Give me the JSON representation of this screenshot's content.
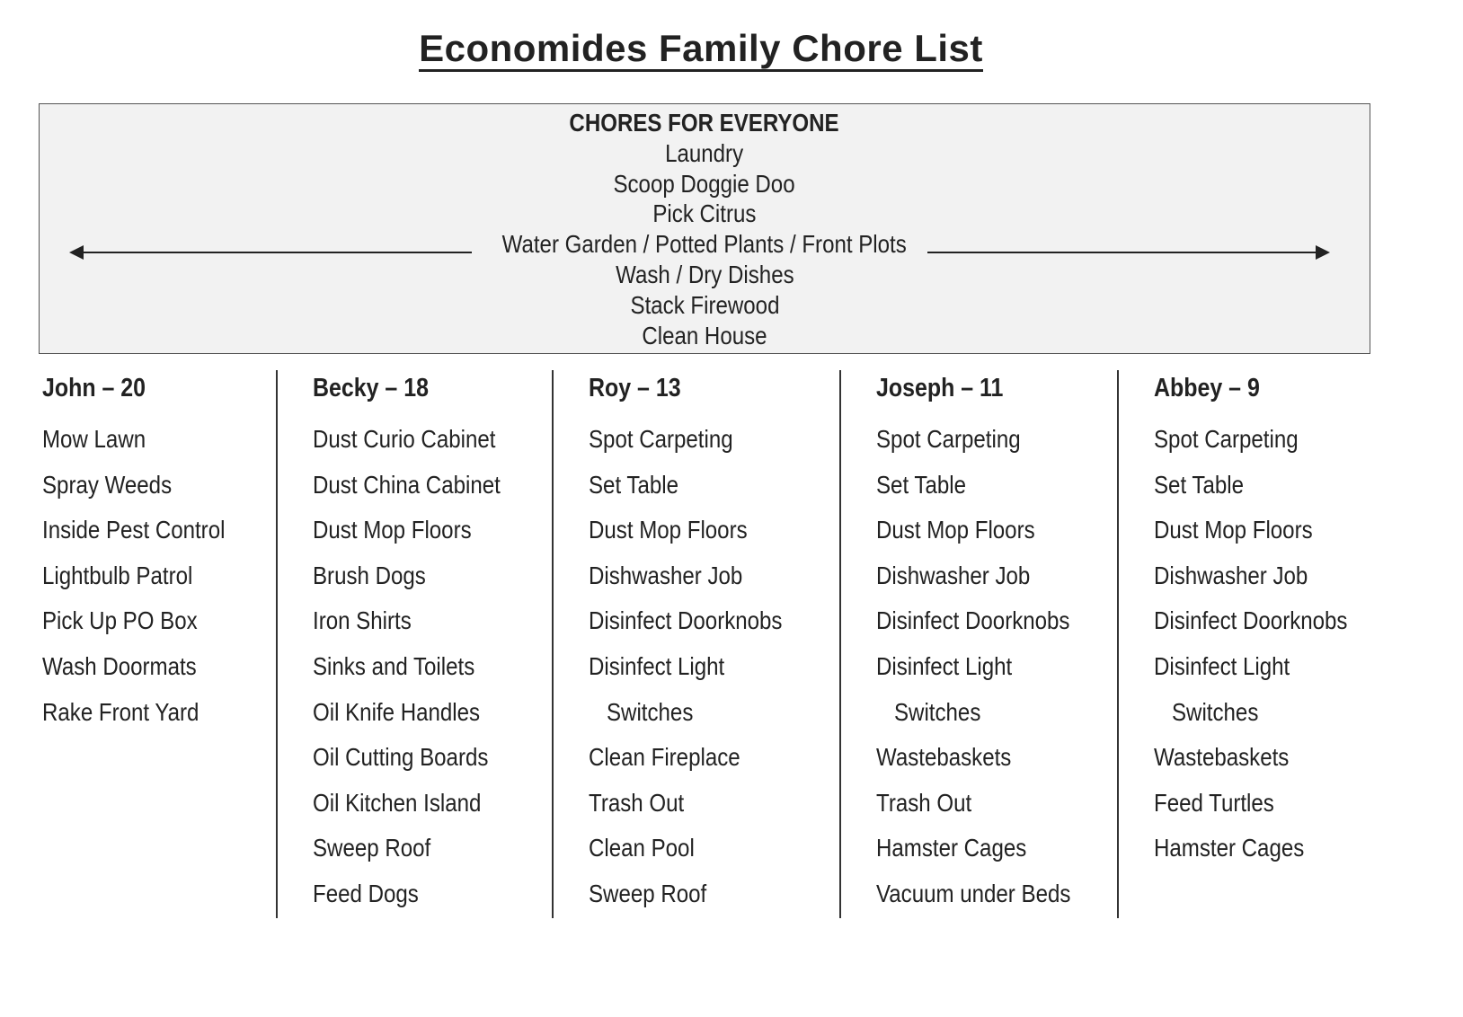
{
  "title": "Economides Family Chore List",
  "everyone": {
    "heading": "CHORES FOR EVERYONE",
    "items": [
      "Laundry",
      "Scoop Doggie Doo",
      "Pick Citrus",
      "Water Garden / Potted Plants / Front Plots",
      "Wash / Dry Dishes",
      "Stack Firewood",
      "Clean House"
    ],
    "arrows": "left-right-arrow-icon"
  },
  "columns": [
    {
      "name": "John – 20",
      "items": [
        {
          "t": "Mow Lawn"
        },
        {
          "t": "Spray Weeds"
        },
        {
          "t": "Inside Pest Control"
        },
        {
          "t": "Lightbulb Patrol"
        },
        {
          "t": "Pick Up PO Box"
        },
        {
          "t": "Wash Doormats"
        },
        {
          "t": "Rake Front Yard"
        }
      ]
    },
    {
      "name": "Becky – 18",
      "items": [
        {
          "t": "Dust Curio Cabinet"
        },
        {
          "t": "Dust China Cabinet"
        },
        {
          "t": "Dust Mop Floors"
        },
        {
          "t": "Brush Dogs"
        },
        {
          "t": "Iron Shirts"
        },
        {
          "t": "Sinks and Toilets"
        },
        {
          "t": "Oil Knife Handles"
        },
        {
          "t": "Oil Cutting Boards"
        },
        {
          "t": "Oil Kitchen Island"
        },
        {
          "t": "Sweep Roof"
        },
        {
          "t": "Feed Dogs"
        }
      ]
    },
    {
      "name": "Roy – 13",
      "items": [
        {
          "t": "Spot Carpeting"
        },
        {
          "t": "Set Table"
        },
        {
          "t": "Dust Mop Floors"
        },
        {
          "t": "Dishwasher Job"
        },
        {
          "t": "Disinfect Doorknobs"
        },
        {
          "t": "Disinfect Light"
        },
        {
          "t": "Switches",
          "indent": true
        },
        {
          "t": "Clean Fireplace"
        },
        {
          "t": "Trash Out"
        },
        {
          "t": "Clean Pool"
        },
        {
          "t": "Sweep Roof"
        }
      ]
    },
    {
      "name": "Joseph – 11",
      "items": [
        {
          "t": "Spot Carpeting"
        },
        {
          "t": "Set Table"
        },
        {
          "t": "Dust Mop Floors"
        },
        {
          "t": "Dishwasher Job"
        },
        {
          "t": "Disinfect Doorknobs"
        },
        {
          "t": "Disinfect Light"
        },
        {
          "t": "Switches",
          "indent": true
        },
        {
          "t": "Wastebaskets"
        },
        {
          "t": "Trash Out"
        },
        {
          "t": "Hamster Cages"
        },
        {
          "t": "Vacuum under Beds"
        }
      ]
    },
    {
      "name": "Abbey – 9",
      "items": [
        {
          "t": "Spot Carpeting"
        },
        {
          "t": "Set Table"
        },
        {
          "t": "Dust Mop Floors"
        },
        {
          "t": "Dishwasher Job"
        },
        {
          "t": "Disinfect Doorknobs"
        },
        {
          "t": "Disinfect Light"
        },
        {
          "t": "Switches",
          "indent": true
        },
        {
          "t": "Wastebaskets"
        },
        {
          "t": "Feed Turtles"
        },
        {
          "t": "Hamster Cages"
        }
      ]
    }
  ]
}
